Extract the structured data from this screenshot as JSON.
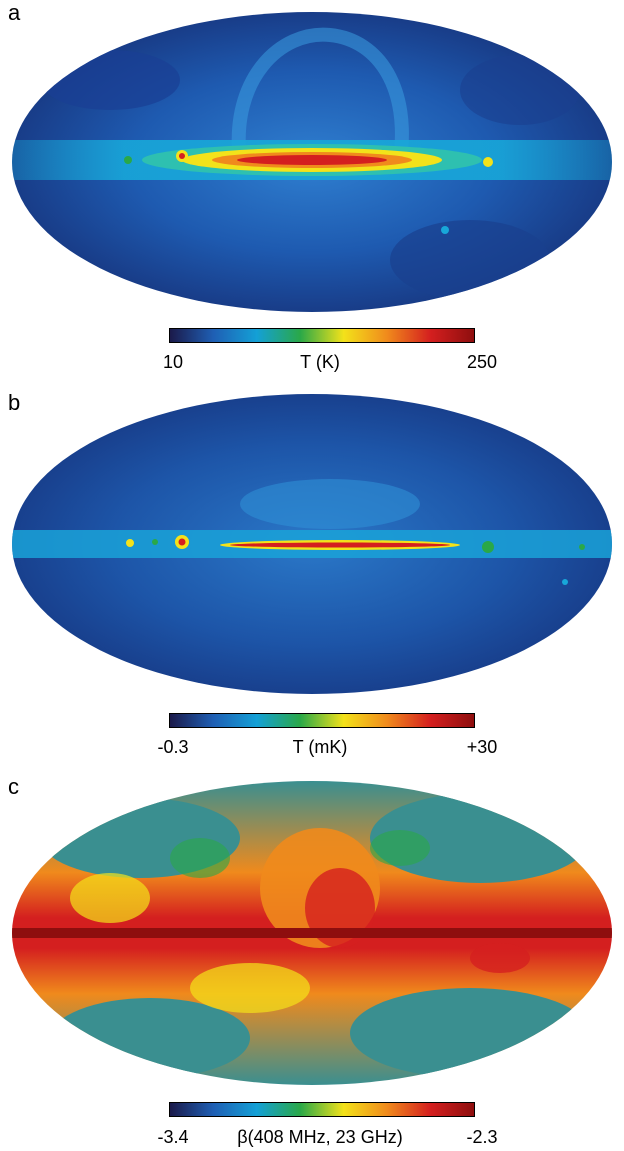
{
  "panels": [
    {
      "letter": "a",
      "min_label": "10",
      "max_label": "250",
      "unit_label": "T (K)"
    },
    {
      "letter": "b",
      "min_label": "-0.3",
      "max_label": "+30",
      "unit_label": "T (mK)"
    },
    {
      "letter": "c",
      "min_label": "-3.4",
      "max_label": "-2.3",
      "unit_label": "β(408 MHz, 23 GHz)"
    }
  ],
  "colors": {
    "cmap_navy": "#1b1a4a",
    "cmap_blue": "#1f5fb4",
    "cmap_cyan": "#14a0d6",
    "cmap_green": "#2aa848",
    "cmap_yellow": "#f3e21a",
    "cmap_orange": "#f08a1c",
    "cmap_red": "#d41f1f",
    "cmap_darkred": "#8e0e0e"
  }
}
